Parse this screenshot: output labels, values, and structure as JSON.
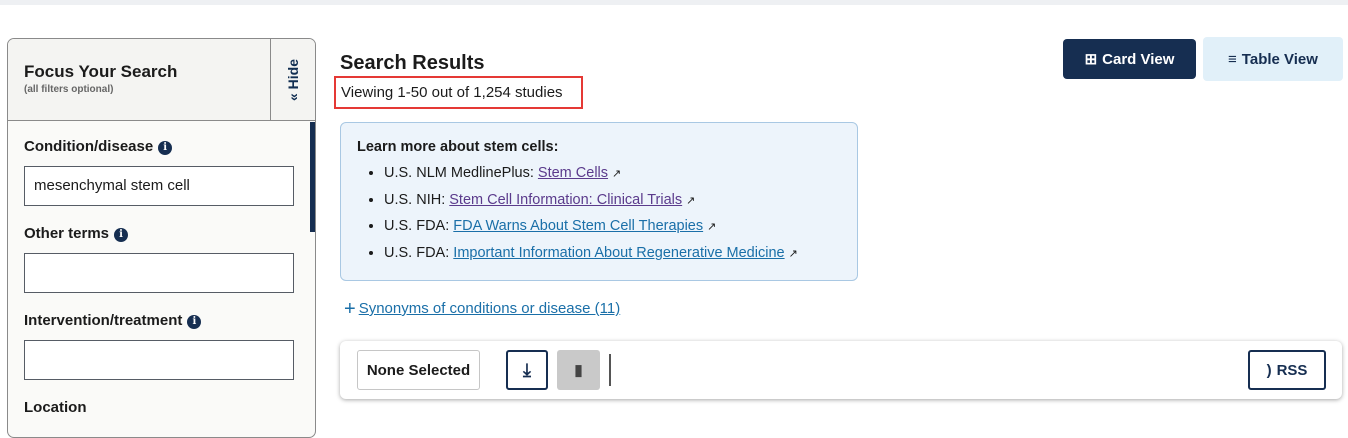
{
  "sidebar": {
    "title": "Focus Your Search",
    "subtitle": "(all filters optional)",
    "hide_label": "« Hide",
    "fields": [
      {
        "label": "Condition/disease",
        "value": "mesenchymal stem cell"
      },
      {
        "label": "Other terms",
        "value": ""
      },
      {
        "label": "Intervention/treatment",
        "value": ""
      },
      {
        "label": "Location"
      }
    ]
  },
  "results": {
    "title": "Search Results",
    "count": "Viewing 1-50 out of 1,254 studies"
  },
  "views": {
    "card": "Card View",
    "table": "Table View"
  },
  "learn": {
    "heading": "Learn more about stem cells:",
    "items": [
      {
        "source": "U.S. NLM MedlinePlus:",
        "link": "Stem Cells"
      },
      {
        "source": "U.S. NIH:",
        "link": "Stem Cell Information: Clinical Trials"
      },
      {
        "source": "U.S. FDA:",
        "link": "FDA Warns About Stem Cell Therapies"
      },
      {
        "source": "U.S. FDA:",
        "link": "Important Information About Regenerative Medicine"
      }
    ]
  },
  "synonyms": "Synonyms of conditions or disease (11)",
  "toolbar": {
    "selected": "None Selected",
    "rss": "RSS"
  }
}
